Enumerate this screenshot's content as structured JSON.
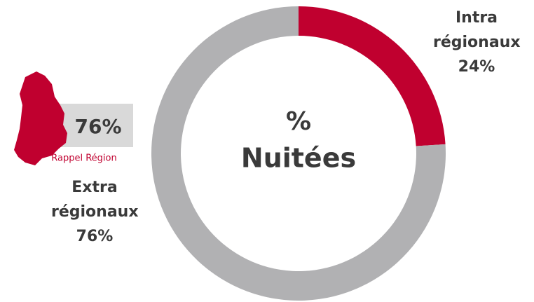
{
  "chart_data": {
    "type": "pie",
    "donut": true,
    "center_text": [
      "%",
      "Nuitées"
    ],
    "categories": [
      "Intra régionaux",
      "Extra régionaux"
    ],
    "values": [
      24,
      76
    ],
    "value_labels": [
      "24%",
      "76%"
    ],
    "colors": [
      "#c0002f",
      "#b1b1b3"
    ]
  },
  "rappel": {
    "value": "76%",
    "label": "Rappel Région"
  }
}
